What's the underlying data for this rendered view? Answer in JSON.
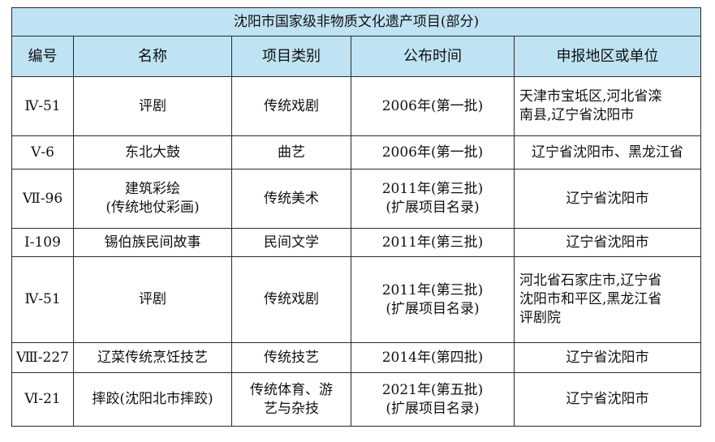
{
  "table": {
    "title": "沈阳市国家级非物质文化遗产项目(部分)",
    "headers": [
      "编号",
      "名称",
      "项目类别",
      "公布时间",
      "申报地区或单位"
    ],
    "rows": [
      {
        "id": "Ⅳ-51",
        "name": [
          "评剧"
        ],
        "category": [
          "传统戏剧"
        ],
        "time": [
          "2006年(第一批)"
        ],
        "region": [
          "天津市宝坻区,河北省滦",
          "南县,辽宁省沈阳市"
        ]
      },
      {
        "id": "Ⅴ-6",
        "name": [
          "东北大鼓"
        ],
        "category": [
          "曲艺"
        ],
        "time": [
          "2006年(第一批)"
        ],
        "region": [
          "辽宁省沈阳市、黑龙江省"
        ]
      },
      {
        "id": "Ⅶ-96",
        "name": [
          "建筑彩绘",
          "(传统地仗彩画)"
        ],
        "category": [
          "传统美术"
        ],
        "time": [
          "2011年(第三批)",
          "(扩展项目名录)"
        ],
        "region": [
          "辽宁省沈阳市"
        ]
      },
      {
        "id": "Ⅰ-109",
        "name": [
          "锡伯族民间故事"
        ],
        "category": [
          "民间文学"
        ],
        "time": [
          "2011年(第三批)"
        ],
        "region": [
          "辽宁省沈阳市"
        ]
      },
      {
        "id": "Ⅳ-51",
        "name": [
          "评剧"
        ],
        "category": [
          "传统戏剧"
        ],
        "time": [
          "2011年(第三批)",
          "(扩展项目名录)"
        ],
        "region": [
          "河北省石家庄市,辽宁省",
          "沈阳市和平区,黑龙江省",
          "评剧院"
        ]
      },
      {
        "id": "Ⅷ-227",
        "name": [
          "辽菜传统烹饪技艺"
        ],
        "category": [
          "传统技艺"
        ],
        "time": [
          "2014年(第四批)"
        ],
        "region": [
          "辽宁省沈阳市"
        ]
      },
      {
        "id": "Ⅵ-21",
        "name": [
          "摔跤(沈阳北市摔跤)"
        ],
        "category": [
          "传统体育、游",
          "艺与杂技"
        ],
        "time": [
          "2021年(第五批)",
          "(扩展项目名录)"
        ],
        "region": [
          "辽宁省沈阳市"
        ]
      }
    ]
  }
}
